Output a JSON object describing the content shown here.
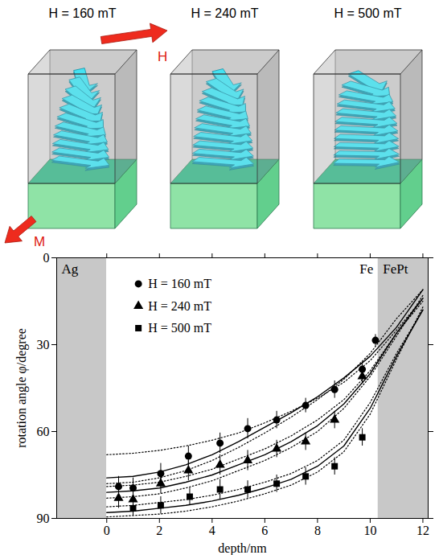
{
  "diagram": {
    "panels": [
      {
        "title": "H = 160 mT"
      },
      {
        "title": "H = 240 mT"
      },
      {
        "title": "H = 500 mT"
      }
    ],
    "field_label": "H",
    "magnetization_label": "M"
  },
  "chart_data": {
    "type": "scatter",
    "x_label": "depth/nm",
    "y_label": "rotation angle φ/degree",
    "xlim": [
      -1.9,
      12.2
    ],
    "xticks": [
      0,
      2,
      4,
      6,
      8,
      10,
      12
    ],
    "ylim": [
      90,
      0
    ],
    "yticks": [
      0,
      30,
      60,
      90
    ],
    "legend": "upper left",
    "layers": [
      {
        "name": "Ag",
        "x": [
          -1.9,
          0
        ],
        "color": "#c8c8c8"
      },
      {
        "name": "Fe",
        "x": [
          0,
          10.3
        ],
        "color": "#ffffff"
      },
      {
        "name": "FePt",
        "x": [
          10.3,
          12.2
        ],
        "color": "#c8c8c8"
      }
    ],
    "curve_x": [
      0,
      1,
      2,
      3,
      4,
      5,
      6,
      7,
      8,
      9,
      10,
      11,
      12
    ],
    "series": [
      {
        "name": "H = 160 mT",
        "marker": "circle",
        "color": "#000000",
        "x": [
          0.45,
          1.0,
          2.05,
          3.1,
          4.3,
          5.35,
          6.45,
          7.55,
          8.65,
          9.7,
          10.2
        ],
        "values": [
          79,
          79.5,
          74.5,
          68.5,
          64,
          59,
          56,
          51,
          45.5,
          38.5,
          28.5
        ],
        "errors": [
          3.5,
          3.5,
          3.5,
          3.5,
          3.5,
          3.5,
          3,
          2.5,
          3,
          2.5,
          2
        ],
        "fit": [
          76,
          75.5,
          74,
          71.5,
          68,
          63.5,
          58.5,
          53.5,
          48,
          41.5,
          34,
          24,
          11
        ],
        "fit_lower": [
          78,
          77.5,
          76,
          73.5,
          70,
          65.5,
          60.5,
          55,
          49,
          42,
          33,
          21,
          11
        ],
        "fit_upper": [
          68,
          67.5,
          66.5,
          65,
          63,
          60.5,
          57,
          53,
          48.5,
          43,
          35.5,
          25,
          14
        ]
      },
      {
        "name": "H = 240 mT",
        "marker": "triangle",
        "color": "#000000",
        "x": [
          0.45,
          1.0,
          2.05,
          3.1,
          4.3,
          5.35,
          6.45,
          7.55,
          8.65,
          9.7
        ],
        "values": [
          83,
          83.5,
          78,
          73.5,
          71.5,
          70,
          66,
          63.5,
          56,
          41
        ],
        "errors": [
          3.5,
          3.5,
          3.5,
          3.5,
          3.5,
          3.5,
          3,
          3,
          3,
          2.5
        ],
        "fit": [
          81,
          80.5,
          79.5,
          77.5,
          75,
          71.5,
          68,
          63.5,
          58,
          50.5,
          40,
          26,
          14
        ],
        "fit_lower": [
          83,
          82.5,
          81.5,
          79.5,
          77,
          73.5,
          70,
          65.5,
          60,
          52,
          41,
          27,
          13
        ],
        "fit_upper": [
          79,
          78.5,
          77.5,
          75.5,
          73,
          69.5,
          66,
          61.5,
          56,
          49,
          39,
          26,
          15
        ]
      },
      {
        "name": "H = 500 mT",
        "marker": "square",
        "color": "#000000",
        "x": [
          1.0,
          2.05,
          3.15,
          4.3,
          5.35,
          6.45,
          7.55,
          8.65,
          9.7
        ],
        "values": [
          86.5,
          85.5,
          82.5,
          80,
          80,
          78,
          75.5,
          72,
          62
        ],
        "errors": [
          2.5,
          3,
          3,
          3.5,
          3,
          3,
          3,
          3,
          3
        ],
        "fit": [
          88,
          87.5,
          86.5,
          85.5,
          84,
          82,
          79.5,
          76.5,
          72,
          65,
          52,
          34,
          18
        ],
        "fit_lower": [
          89.5,
          89,
          88.5,
          87.5,
          86,
          84,
          81.5,
          78.5,
          74,
          67,
          54,
          35,
          17
        ],
        "fit_upper": [
          86,
          85.5,
          84.5,
          83.5,
          82,
          80,
          77.5,
          74.5,
          70,
          63,
          50,
          33,
          18
        ]
      }
    ]
  }
}
